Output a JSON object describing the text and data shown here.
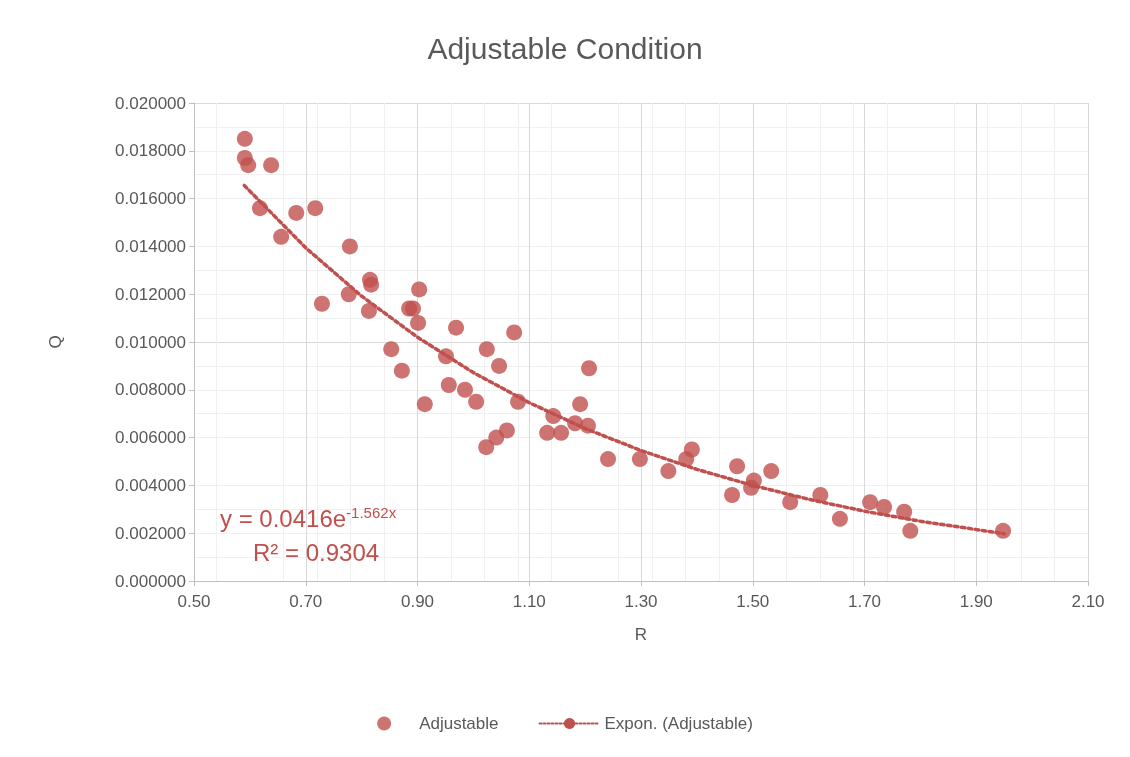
{
  "chart_data": {
    "type": "scatter",
    "title": "Adjustable Condition",
    "xlabel": "R",
    "ylabel": "Q",
    "xlim": [
      0.5,
      2.1
    ],
    "xticks": [
      {
        "value": 0.5,
        "label": "0.50"
      },
      {
        "value": 0.7,
        "label": "0.70"
      },
      {
        "value": 0.9,
        "label": "0.90"
      },
      {
        "value": 1.1,
        "label": "1.10"
      },
      {
        "value": 1.3,
        "label": "1.30"
      },
      {
        "value": 1.5,
        "label": "1.50"
      },
      {
        "value": 1.7,
        "label": "1.70"
      },
      {
        "value": 1.9,
        "label": "1.90"
      },
      {
        "value": 2.1,
        "label": "2.10"
      }
    ],
    "ylim": [
      0,
      0.02
    ],
    "yticks": [
      {
        "value": 0,
        "label": "0.000000"
      },
      {
        "value": 0.002,
        "label": "0.002000"
      },
      {
        "value": 0.004,
        "label": "0.004000"
      },
      {
        "value": 0.006,
        "label": "0.006000"
      },
      {
        "value": 0.008,
        "label": "0.008000"
      },
      {
        "value": 0.01,
        "label": "0.010000"
      },
      {
        "value": 0.012,
        "label": "0.012000"
      },
      {
        "value": 0.014,
        "label": "0.014000"
      },
      {
        "value": 0.016,
        "label": "0.016000"
      },
      {
        "value": 0.018,
        "label": "0.018000"
      },
      {
        "value": 0.02,
        "label": "0.020000"
      }
    ],
    "grid": true,
    "legend": "bottom",
    "marker": "circle",
    "annotations": [
      "y = 0.0416e$^{-1.562x}$",
      "R² = 0.9304"
    ],
    "series": [
      {
        "name": "Adjustable",
        "color": "#c0504d",
        "x": [
          0.591,
          0.591,
          0.597,
          0.638,
          0.618,
          0.683,
          0.717,
          0.656,
          0.779,
          0.815,
          0.817,
          0.777,
          0.729,
          0.813,
          0.903,
          0.885,
          0.892,
          0.901,
          0.969,
          1.073,
          0.853,
          0.951,
          1.046,
          1.024,
          0.872,
          0.956,
          0.985,
          1.005,
          0.913,
          1.08,
          1.207,
          1.191,
          1.143,
          1.182,
          1.205,
          1.157,
          1.132,
          1.06,
          1.041,
          1.023,
          1.241,
          1.298,
          1.349,
          1.381,
          1.391,
          1.472,
          1.463,
          1.497,
          1.502,
          1.533,
          1.567,
          1.621,
          1.656,
          1.71,
          1.735,
          1.771,
          1.782,
          1.948
        ],
        "values": [
          0.0185,
          0.0177,
          0.0174,
          0.0174,
          0.0156,
          0.0154,
          0.0156,
          0.0144,
          0.014,
          0.0126,
          0.0124,
          0.012,
          0.0116,
          0.0113,
          0.0122,
          0.0114,
          0.0114,
          0.0108,
          0.0106,
          0.0104,
          0.0097,
          0.0094,
          0.009,
          0.0097,
          0.0088,
          0.0082,
          0.008,
          0.0075,
          0.0074,
          0.0075,
          0.0089,
          0.0074,
          0.0069,
          0.0066,
          0.0065,
          0.0062,
          0.0062,
          0.0063,
          0.006,
          0.0056,
          0.0051,
          0.0051,
          0.0046,
          0.0051,
          0.0055,
          0.0048,
          0.0036,
          0.0039,
          0.0042,
          0.0046,
          0.0033,
          0.0036,
          0.0026,
          0.0033,
          0.0031,
          0.0029,
          0.0021,
          0.0021
        ]
      },
      {
        "name": "Expon. (Adjustable)",
        "type": "line",
        "color": "#c0504d",
        "line_style": "dotted",
        "marker": "none",
        "x": [
          0.59,
          0.7,
          0.8,
          0.9,
          1.0,
          1.1,
          1.2,
          1.3,
          1.4,
          1.5,
          1.6,
          1.7,
          1.8,
          1.95
        ],
        "values": [
          0.01655,
          0.01394,
          0.01192,
          0.0102,
          0.00872,
          0.00746,
          0.00638,
          0.00546,
          0.00467,
          0.004,
          0.00342,
          0.00292,
          0.0025,
          0.00198
        ]
      }
    ]
  }
}
